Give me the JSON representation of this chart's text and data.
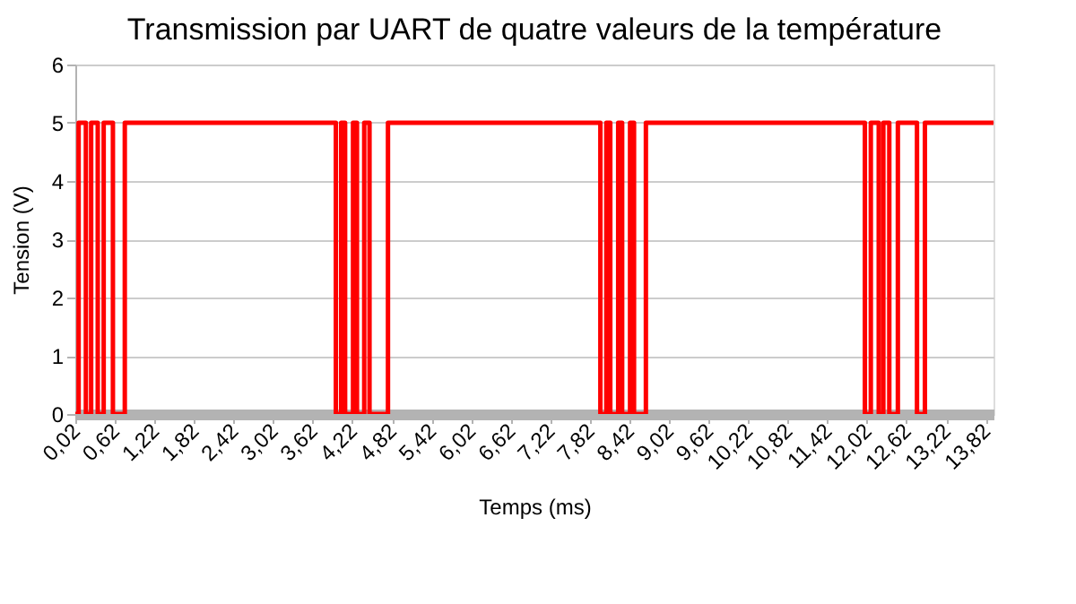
{
  "chart_data": {
    "type": "step",
    "title": "Transmission par UART de quatre valeurs de la température",
    "xlabel": "Temps (ms)",
    "ylabel": "Tension (V)",
    "series": [
      {
        "color": "#ff0000",
        "x": [
          0.02,
          0.07,
          0.18,
          0.26,
          0.36,
          0.45,
          0.59,
          0.77,
          3.97,
          4.05,
          4.11,
          4.23,
          4.29,
          4.4,
          4.48,
          4.76,
          7.98,
          8.07,
          8.13,
          8.25,
          8.31,
          8.43,
          8.49,
          8.67,
          11.99,
          12.08,
          12.2,
          12.27,
          12.36,
          12.49,
          12.78,
          12.9,
          13.94
        ],
        "values": [
          0,
          5,
          0,
          5,
          0,
          5,
          0,
          5,
          0,
          5,
          0,
          5,
          0,
          5,
          0,
          5,
          0,
          5,
          0,
          5,
          0,
          5,
          0,
          5,
          0,
          5,
          0,
          5,
          0,
          5,
          0,
          5,
          5
        ]
      }
    ],
    "xlim": [
      0.02,
      13.94
    ],
    "xticks": [
      {
        "value": 0.02,
        "label": "0,02"
      },
      {
        "value": 0.62,
        "label": "0,62"
      },
      {
        "value": 1.22,
        "label": "1,22"
      },
      {
        "value": 1.82,
        "label": "1,82"
      },
      {
        "value": 2.42,
        "label": "2,42"
      },
      {
        "value": 3.02,
        "label": "3,02"
      },
      {
        "value": 3.62,
        "label": "3,62"
      },
      {
        "value": 4.22,
        "label": "4,22"
      },
      {
        "value": 4.82,
        "label": "4,82"
      },
      {
        "value": 5.42,
        "label": "5,42"
      },
      {
        "value": 6.02,
        "label": "6,02"
      },
      {
        "value": 6.62,
        "label": "6,62"
      },
      {
        "value": 7.22,
        "label": "7,22"
      },
      {
        "value": 7.82,
        "label": "7,82"
      },
      {
        "value": 8.42,
        "label": "8,42"
      },
      {
        "value": 9.02,
        "label": "9,02"
      },
      {
        "value": 9.62,
        "label": "9,62"
      },
      {
        "value": 10.22,
        "label": "10,22"
      },
      {
        "value": 10.82,
        "label": "10,82"
      },
      {
        "value": 11.42,
        "label": "11,42"
      },
      {
        "value": 12.02,
        "label": "12,02"
      },
      {
        "value": 12.62,
        "label": "12,62"
      },
      {
        "value": 13.22,
        "label": "13,22"
      },
      {
        "value": 13.82,
        "label": "13,82"
      }
    ],
    "ylim": [
      0,
      6
    ],
    "yticks": [
      0,
      1,
      2,
      3,
      4,
      5,
      6
    ],
    "grid": "y",
    "marker": "none",
    "line_style": "solid"
  }
}
